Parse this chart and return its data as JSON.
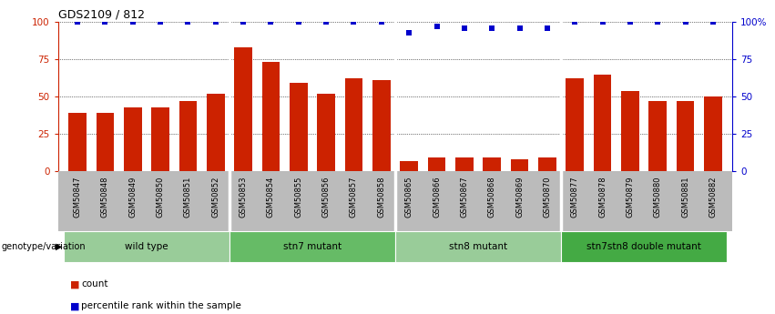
{
  "title": "GDS2109 / 812",
  "samples": [
    "GSM50847",
    "GSM50848",
    "GSM50849",
    "GSM50850",
    "GSM50851",
    "GSM50852",
    "GSM50853",
    "GSM50854",
    "GSM50855",
    "GSM50856",
    "GSM50857",
    "GSM50858",
    "GSM50865",
    "GSM50866",
    "GSM50867",
    "GSM50868",
    "GSM50869",
    "GSM50870",
    "GSM50877",
    "GSM50878",
    "GSM50879",
    "GSM50880",
    "GSM50881",
    "GSM50882"
  ],
  "counts": [
    39,
    39,
    43,
    43,
    47,
    52,
    83,
    73,
    59,
    52,
    62,
    61,
    7,
    9,
    9,
    9,
    8,
    9,
    62,
    65,
    54,
    47,
    47,
    50
  ],
  "percentile": [
    100,
    100,
    100,
    100,
    100,
    100,
    100,
    100,
    100,
    100,
    100,
    100,
    93,
    97,
    96,
    96,
    96,
    96,
    100,
    100,
    100,
    100,
    100,
    100
  ],
  "groups": [
    {
      "label": "wild type",
      "start": 0,
      "end": 6,
      "color": "#99cc99"
    },
    {
      "label": "stn7 mutant",
      "start": 6,
      "end": 12,
      "color": "#66bb66"
    },
    {
      "label": "stn8 mutant",
      "start": 12,
      "end": 18,
      "color": "#99cc99"
    },
    {
      "label": "stn7stn8 double mutant",
      "start": 18,
      "end": 24,
      "color": "#44aa44"
    }
  ],
  "bar_color": "#cc2200",
  "percentile_color": "#0000cc",
  "ylim": [
    0,
    100
  ],
  "yticks": [
    0,
    25,
    50,
    75,
    100
  ],
  "legend_label_count": "count",
  "legend_label_percentile": "percentile rank within the sample",
  "genotype_label": "genotype/variation",
  "xtick_bg_color": "#bbbbbb",
  "group_boundary_indices": [
    6,
    12,
    18
  ]
}
